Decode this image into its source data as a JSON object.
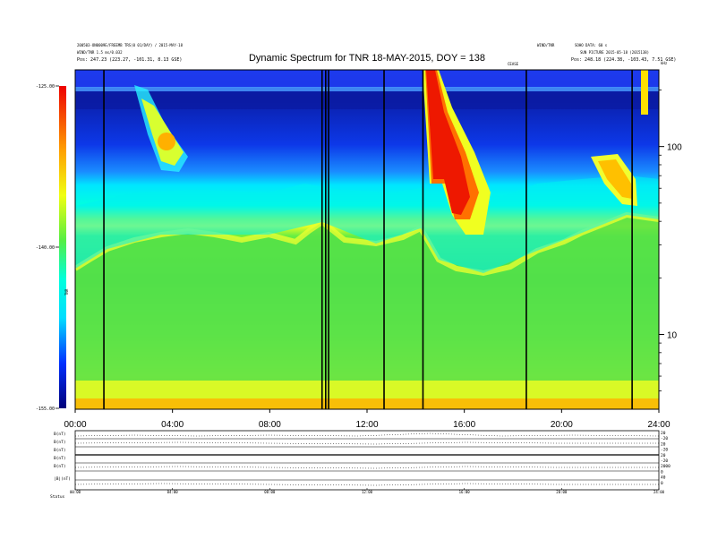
{
  "header": {
    "left_line1": "200503-ON0009E/FREEMB TRS(0 01/DAY) / 2015-MAY-18",
    "left_line2": "WIND/TNR 1.5 ms/0.032",
    "left_line3": "Pos:  247.23 (223.27, -101.31, 8.13 GSE)",
    "right_line1": "WIND/TNR",
    "right_line2": "SUN PICTURE 2015-05-18 (2015138)",
    "right_line3": "Pos:  248.18 (224.38, -103.43, 7.51 GSE)",
    "right_corner": "SOHO DATA: 60 s",
    "marker_right": "CEASE",
    "corner_small": "kHz"
  },
  "chart_data": {
    "type": "heatmap",
    "title": "Dynamic Spectrum for TNR 18-MAY-2015, DOY = 138",
    "x_ticks": [
      "00:00",
      "04:00",
      "08:00",
      "12:00",
      "16:00",
      "20:00",
      "24:00"
    ],
    "x_range_hours": [
      0,
      24
    ],
    "y_right_ticks": [
      "100",
      "10"
    ],
    "y_right_scale": "log",
    "y_right_range_khz": [
      4,
      256
    ],
    "colorbar_ticks": [
      "-125.00",
      "-140.00",
      "-155.00"
    ],
    "colorbar_range": [
      -155,
      -125
    ],
    "colorbar_label": "TNR",
    "data_gaps_hours": [
      1.18,
      10.15,
      10.3,
      10.42,
      12.7,
      14.3,
      18.55,
      22.9
    ]
  },
  "bottom_panel": {
    "row_labels": [
      "B(nT)",
      "B(nT)",
      "B(nT)",
      "B(nT)",
      "B(nT)",
      "|B|(nT)"
    ],
    "right_labels": [
      "20",
      "-20",
      "20",
      "-20",
      "20",
      "-20",
      "2000",
      "0",
      "40",
      "0"
    ],
    "x_ticks": [
      "00:00",
      "04:00",
      "08:00",
      "12:00",
      "16:00",
      "20:00",
      "24:00"
    ],
    "footer_label": "Status"
  }
}
